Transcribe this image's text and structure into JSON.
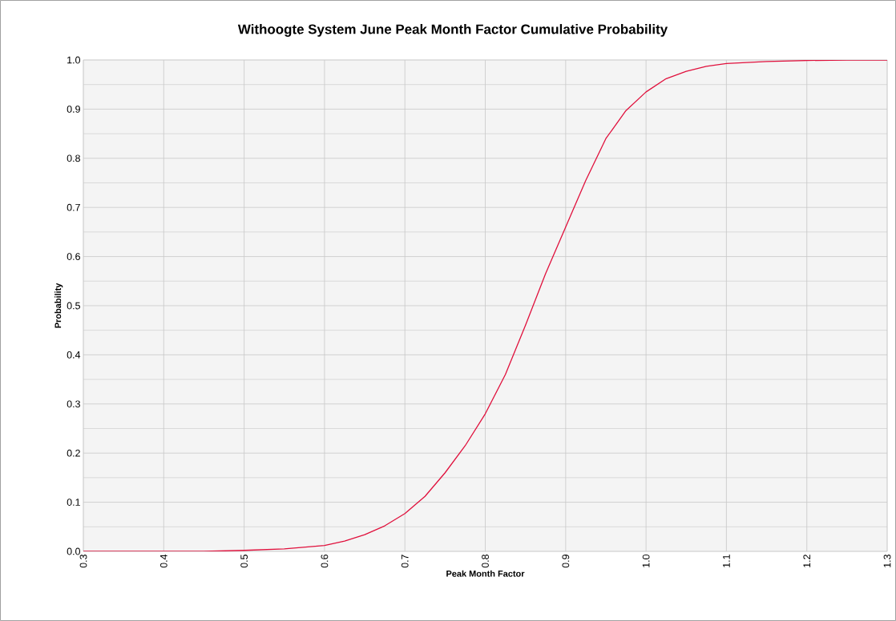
{
  "chart_data": {
    "type": "line",
    "title": "Withoogte System June Peak Month Factor Cumulative Probability",
    "xlabel": "Peak Month Factor",
    "ylabel": "Probability",
    "x": [
      0.3,
      0.35,
      0.4,
      0.45,
      0.5,
      0.55,
      0.6,
      0.625,
      0.65,
      0.675,
      0.7,
      0.725,
      0.75,
      0.775,
      0.8,
      0.825,
      0.85,
      0.875,
      0.9,
      0.925,
      0.95,
      0.975,
      1.0,
      1.025,
      1.05,
      1.075,
      1.1,
      1.15,
      1.2,
      1.25,
      1.3
    ],
    "series": [
      {
        "color": "#e0103c",
        "values": [
          0,
          0,
          0,
          0,
          0.002,
          0.005,
          0.012,
          0.021,
          0.034,
          0.052,
          0.077,
          0.112,
          0.16,
          0.215,
          0.28,
          0.36,
          0.46,
          0.565,
          0.66,
          0.755,
          0.84,
          0.897,
          0.935,
          0.962,
          0.977,
          0.987,
          0.993,
          0.997,
          0.999,
          1.0,
          1.0
        ]
      }
    ],
    "xlim": [
      0.3,
      1.3
    ],
    "ylim": [
      0,
      1.0
    ],
    "xticks": [
      0.3,
      0.4,
      0.5,
      0.6,
      0.7,
      0.8,
      0.9,
      {
        "value": 1.0,
        "label": "1.0"
      },
      1.1,
      1.2,
      1.3
    ],
    "yticks": [
      {
        "value": 0,
        "label": "0.0"
      },
      0.1,
      0.2,
      0.3,
      0.4,
      0.5,
      0.6,
      0.7,
      0.8,
      0.9,
      {
        "value": 1.0,
        "label": "1.0"
      }
    ],
    "grid": true,
    "marker": "none",
    "line_style": "solid"
  }
}
